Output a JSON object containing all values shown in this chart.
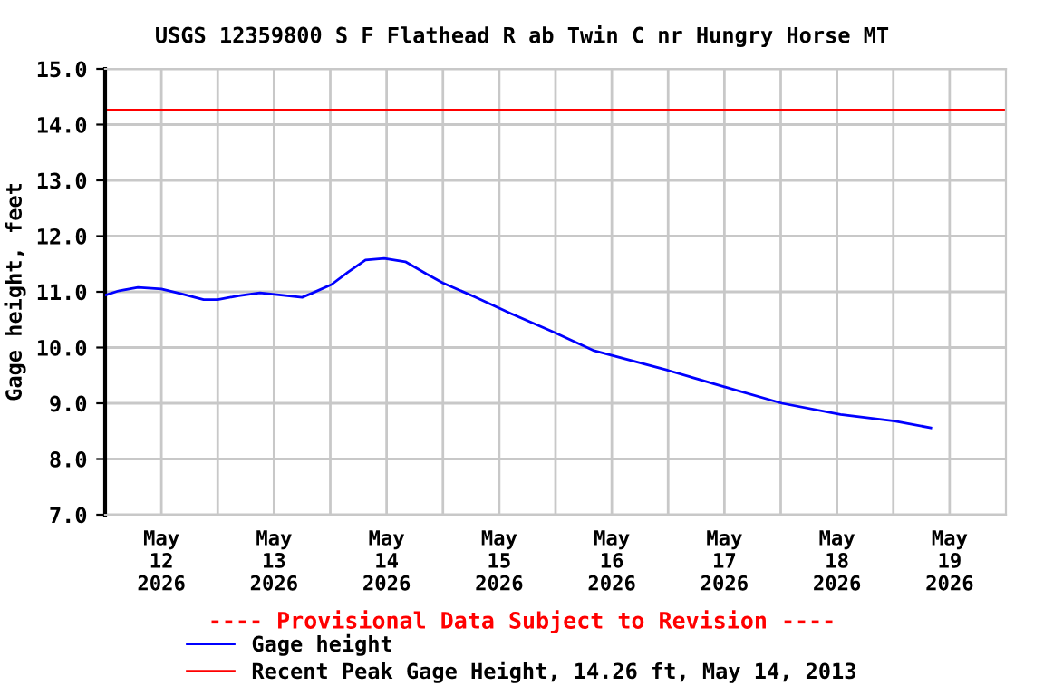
{
  "chart_data": {
    "type": "line",
    "title": "USGS 12359800 S F Flathead R ab Twin C nr Hungry Horse MT",
    "ylabel": "Gage height, feet",
    "xlim": [
      "2026-05-12T00:00",
      "2026-05-20T00:00"
    ],
    "xticks": [
      {
        "value": "2026-05-12T12:00",
        "label": "May\n12\n2026"
      },
      {
        "value": "2026-05-13T00:00",
        "label": null
      },
      {
        "value": "2026-05-13T12:00",
        "label": "May\n13\n2026"
      },
      {
        "value": "2026-05-14T00:00",
        "label": null
      },
      {
        "value": "2026-05-14T12:00",
        "label": "May\n14\n2026"
      },
      {
        "value": "2026-05-15T00:00",
        "label": null
      },
      {
        "value": "2026-05-15T12:00",
        "label": "May\n15\n2026"
      },
      {
        "value": "2026-05-16T00:00",
        "label": null
      },
      {
        "value": "2026-05-16T12:00",
        "label": "May\n16\n2026"
      },
      {
        "value": "2026-05-17T00:00",
        "label": null
      },
      {
        "value": "2026-05-17T12:00",
        "label": "May\n17\n2026"
      },
      {
        "value": "2026-05-18T00:00",
        "label": null
      },
      {
        "value": "2026-05-18T12:00",
        "label": "May\n18\n2026"
      },
      {
        "value": "2026-05-19T00:00",
        "label": null
      },
      {
        "value": "2026-05-19T12:00",
        "label": "May\n19\n2026"
      }
    ],
    "ylim": [
      7.0,
      15.0
    ],
    "yticks": [
      {
        "value": 7,
        "label": "7.0"
      },
      {
        "value": 8,
        "label": "8.0"
      },
      {
        "value": 9,
        "label": "9.0"
      },
      {
        "value": 10,
        "label": "10.0"
      },
      {
        "value": 11,
        "label": "11.0"
      },
      {
        "value": 12,
        "label": "12.0"
      },
      {
        "value": 13,
        "label": "13.0"
      },
      {
        "value": 14,
        "label": "14.0"
      },
      {
        "value": 15,
        "label": "15.0"
      }
    ],
    "grid": true,
    "legend": "bottom",
    "marker": "none",
    "line_style": "solid",
    "x": [
      "2026-05-12T00:00",
      "2026-05-12T03:00",
      "2026-05-12T07:00",
      "2026-05-12T12:00",
      "2026-05-12T16:00",
      "2026-05-12T21:00",
      "2026-05-13T00:00",
      "2026-05-13T04:30",
      "2026-05-13T09:00",
      "2026-05-13T13:30",
      "2026-05-13T18:00",
      "2026-05-13T20:30",
      "2026-05-14T00:15",
      "2026-05-14T03:45",
      "2026-05-14T07:30",
      "2026-05-14T11:30",
      "2026-05-14T16:00",
      "2026-05-14T20:30",
      "2026-05-15T00:00",
      "2026-05-15T06:45",
      "2026-05-15T14:30",
      "2026-05-15T23:30",
      "2026-05-16T08:00",
      "2026-05-17T00:00",
      "2026-05-17T11:00",
      "2026-05-18T00:15",
      "2026-05-18T12:45",
      "2026-05-19T00:15",
      "2026-05-19T08:00"
    ],
    "series": [
      {
        "name": "Gage height",
        "color": "#0000ff",
        "values": [
          10.94,
          11.02,
          11.08,
          11.05,
          10.97,
          10.86,
          10.86,
          10.93,
          10.98,
          10.94,
          10.9,
          10.99,
          11.13,
          11.35,
          11.57,
          11.6,
          11.54,
          11.32,
          11.16,
          10.91,
          10.61,
          10.28,
          9.95,
          9.59,
          9.32,
          9.0,
          8.8,
          8.68,
          8.56
        ]
      }
    ],
    "ref_lines": [
      {
        "axis": "y",
        "value": 14.26,
        "label": "Recent Peak Gage Height, 14.26 ft, May 14, 2013",
        "color": "#ff0000",
        "line_style": "solid"
      }
    ],
    "annotations": [
      "---- Provisional Data Subject to Revision ----"
    ]
  }
}
